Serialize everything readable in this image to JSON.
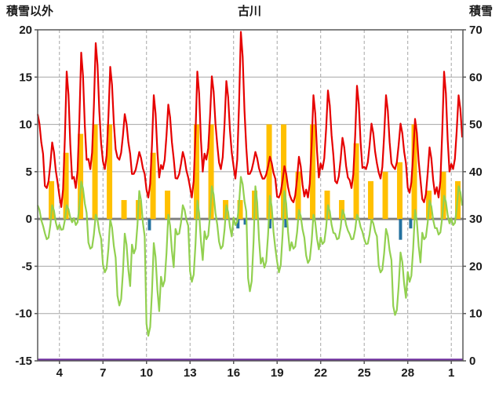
{
  "header": {
    "left_axis_title": "積雪以外",
    "chart_title": "古川",
    "right_axis_title": "積雪"
  },
  "chart_data": {
    "type": "line",
    "title": "古川",
    "legend_position": "none",
    "left_axis": {
      "label": "積雪以外",
      "min": -15,
      "max": 20,
      "tick_step": 5,
      "ticks": [
        20,
        15,
        10,
        5,
        0,
        -5,
        -10,
        -15
      ]
    },
    "right_axis": {
      "label": "積雪",
      "min": 0,
      "max": 70,
      "tick_step": 10,
      "ticks": [
        70,
        60,
        50,
        40,
        30,
        20,
        10,
        0
      ]
    },
    "x_axis": {
      "domain": [
        2.5,
        31.8
      ],
      "tick_days": [
        4,
        7,
        10,
        13,
        16,
        19,
        22,
        25,
        28,
        31
      ],
      "tick_labels": [
        "4",
        "7",
        "10",
        "13",
        "16",
        "19",
        "22",
        "25",
        "28",
        "1"
      ]
    },
    "grid": {
      "vertical": "dashed",
      "horizontal": "solid"
    },
    "series": [
      {
        "name": "red-line",
        "type": "line",
        "color": "#E60000",
        "axis": "left",
        "daily": [
          {
            "day": 2,
            "min": 6,
            "max": 11
          },
          {
            "day": 3,
            "min": 3,
            "max": 8
          },
          {
            "day": 4,
            "min": 1,
            "max": 15.5
          },
          {
            "day": 5,
            "min": 3,
            "max": 17.5
          },
          {
            "day": 6,
            "min": 5,
            "max": 18.5
          },
          {
            "day": 7,
            "min": 5,
            "max": 16
          },
          {
            "day": 8,
            "min": 6,
            "max": 11
          },
          {
            "day": 9,
            "min": 4.5,
            "max": 7
          },
          {
            "day": 10,
            "min": 2,
            "max": 13
          },
          {
            "day": 11,
            "min": 5,
            "max": 12
          },
          {
            "day": 12,
            "min": 4,
            "max": 7
          },
          {
            "day": 13,
            "min": 2,
            "max": 15.5
          },
          {
            "day": 14,
            "min": 6,
            "max": 15
          },
          {
            "day": 15,
            "min": 5,
            "max": 14.5
          },
          {
            "day": 16,
            "min": 4,
            "max": 19.7
          },
          {
            "day": 17,
            "min": 4.5,
            "max": 7
          },
          {
            "day": 18,
            "min": 4,
            "max": 6.5
          },
          {
            "day": 19,
            "min": 2,
            "max": 5.5
          },
          {
            "day": 20,
            "min": 1.5,
            "max": 6.5
          },
          {
            "day": 21,
            "min": 2,
            "max": 13
          },
          {
            "day": 22,
            "min": 5,
            "max": 13.5
          },
          {
            "day": 23,
            "min": 3.5,
            "max": 8.5
          },
          {
            "day": 24,
            "min": 3,
            "max": 14
          },
          {
            "day": 25,
            "min": 5,
            "max": 10
          },
          {
            "day": 26,
            "min": 4,
            "max": 13
          },
          {
            "day": 27,
            "min": 5,
            "max": 10
          },
          {
            "day": 28,
            "min": 2.5,
            "max": 10.5
          },
          {
            "day": 29,
            "min": 1.5,
            "max": 7.5
          },
          {
            "day": 30,
            "min": 2,
            "max": 15.5
          },
          {
            "day": 31,
            "min": 5,
            "max": 13
          }
        ]
      },
      {
        "name": "green-line",
        "type": "line",
        "color": "#92D050",
        "axis": "left",
        "daily": [
          {
            "day": 2,
            "min": -2,
            "max": 2
          },
          {
            "day": 3,
            "min": -2.5,
            "max": 2
          },
          {
            "day": 4,
            "min": -1.5,
            "max": 2
          },
          {
            "day": 5,
            "min": -1,
            "max": 4.5
          },
          {
            "day": 6,
            "min": -3.5,
            "max": 1
          },
          {
            "day": 7,
            "min": -6,
            "max": 0.5
          },
          {
            "day": 8,
            "min": -9.5,
            "max": -1
          },
          {
            "day": 9,
            "min": -4,
            "max": 3.5
          },
          {
            "day": 10,
            "min": -12.7,
            "max": -2
          },
          {
            "day": 11,
            "min": -7.5,
            "max": 1
          },
          {
            "day": 12,
            "min": -2,
            "max": 2
          },
          {
            "day": 13,
            "min": -7,
            "max": 2.5
          },
          {
            "day": 14,
            "min": -2.5,
            "max": 4
          },
          {
            "day": 15,
            "min": -3.5,
            "max": 2
          },
          {
            "day": 16,
            "min": -1,
            "max": 5
          },
          {
            "day": 17,
            "min": -8,
            "max": 4
          },
          {
            "day": 18,
            "min": -5.5,
            "max": 3
          },
          {
            "day": 19,
            "min": -6,
            "max": 3.5
          },
          {
            "day": 20,
            "min": -3.5,
            "max": 1.5
          },
          {
            "day": 21,
            "min": -5,
            "max": 1
          },
          {
            "day": 22,
            "min": -3,
            "max": 2
          },
          {
            "day": 23,
            "min": -2.5,
            "max": 1.5
          },
          {
            "day": 24,
            "min": -2.5,
            "max": 1
          },
          {
            "day": 25,
            "min": -3,
            "max": 0.5
          },
          {
            "day": 26,
            "min": -6,
            "max": -0.5
          },
          {
            "day": 27,
            "min": -10.5,
            "max": -3
          },
          {
            "day": 28,
            "min": -7,
            "max": 1.5
          },
          {
            "day": 29,
            "min": -2.5,
            "max": 2.5
          },
          {
            "day": 30,
            "min": -2,
            "max": 3
          },
          {
            "day": 31,
            "min": -1,
            "max": 4
          }
        ]
      },
      {
        "name": "orange-bars",
        "type": "bar",
        "color": "#FFC000",
        "axis": "left",
        "cap": 10,
        "daily": [
          {
            "day": 3,
            "value": 4
          },
          {
            "day": 4,
            "value": 7
          },
          {
            "day": 5,
            "value": 9
          },
          {
            "day": 6,
            "value": 10
          },
          {
            "day": 7,
            "value": 10
          },
          {
            "day": 8,
            "value": 2
          },
          {
            "day": 9,
            "value": 2
          },
          {
            "day": 10,
            "value": 7
          },
          {
            "day": 11,
            "value": 3
          },
          {
            "day": 12,
            "value": 0
          },
          {
            "day": 13,
            "value": 10
          },
          {
            "day": 14,
            "value": 10
          },
          {
            "day": 15,
            "value": 2
          },
          {
            "day": 16,
            "value": 2
          },
          {
            "day": 17,
            "value": 3
          },
          {
            "day": 18,
            "value": 10
          },
          {
            "day": 19,
            "value": 10
          },
          {
            "day": 20,
            "value": 5
          },
          {
            "day": 21,
            "value": 10
          },
          {
            "day": 22,
            "value": 3
          },
          {
            "day": 23,
            "value": 2
          },
          {
            "day": 24,
            "value": 8
          },
          {
            "day": 25,
            "value": 4
          },
          {
            "day": 26,
            "value": 5
          },
          {
            "day": 27,
            "value": 6
          },
          {
            "day": 28,
            "value": 10
          },
          {
            "day": 29,
            "value": 3
          },
          {
            "day": 30,
            "value": 5
          },
          {
            "day": 31,
            "value": 4
          }
        ]
      },
      {
        "name": "blue-bars",
        "type": "bar",
        "color": "#23719F",
        "axis": "left",
        "bars": [
          {
            "day": 10.2,
            "value": -1.2
          },
          {
            "day": 16.3,
            "value": -1
          },
          {
            "day": 16.8,
            "value": -0.6
          },
          {
            "day": 18.5,
            "value": -1
          },
          {
            "day": 19.6,
            "value": -0.9
          },
          {
            "day": 27.5,
            "value": -2.2
          },
          {
            "day": 28.2,
            "value": -1
          }
        ]
      },
      {
        "name": "purple-line",
        "type": "line",
        "color": "#7030A0",
        "axis": "right",
        "values": [
          {
            "day": 2.5,
            "value": 0
          },
          {
            "day": 31.8,
            "value": 0
          }
        ]
      }
    ]
  },
  "colors": {
    "background": "#FFFFFF",
    "plot_border": "#595959",
    "grid": "#A6A6A6",
    "zero_line": "#808080",
    "text": "#1A1A1A"
  }
}
